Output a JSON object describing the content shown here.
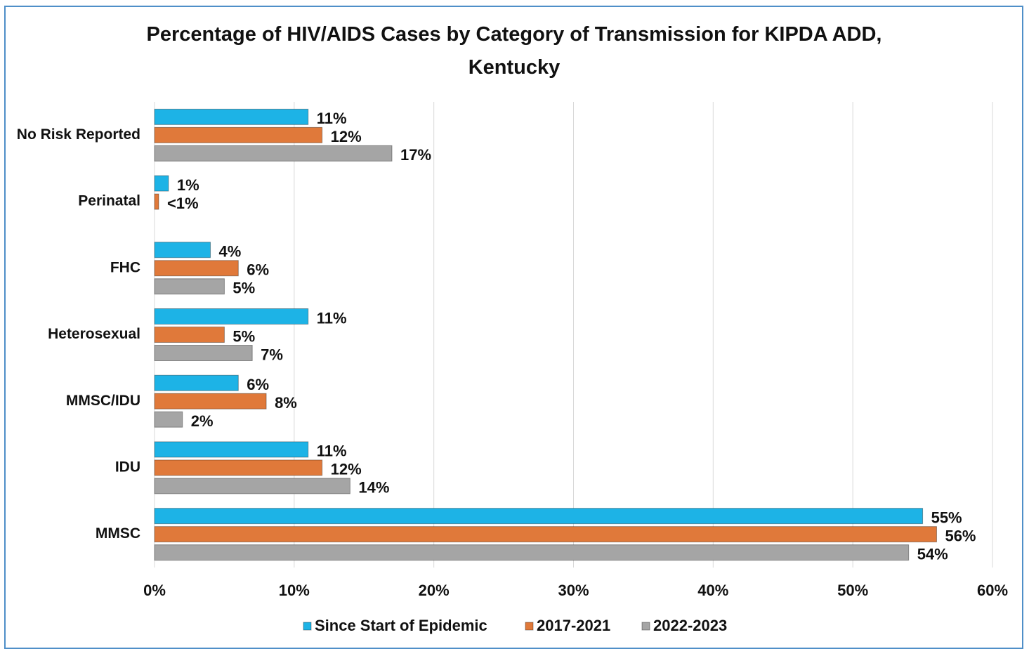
{
  "chart_data": {
    "type": "bar",
    "orientation": "horizontal",
    "title": "Percentage of HIV/AIDS Cases by Category of Transmission  for KIPDA ADD, Kentucky",
    "categories": [
      "No Risk Reported",
      "Perinatal",
      "FHC",
      "Heterosexual",
      "MMSC/IDU",
      "IDU",
      "MMSC"
    ],
    "series": [
      {
        "name": "Since Start of Epidemic",
        "color": "#1db3e6",
        "values": [
          11,
          1,
          4,
          11,
          6,
          11,
          55
        ],
        "value_labels": [
          "11%",
          "1%",
          "4%",
          "11%",
          "6%",
          "11%",
          "55%"
        ]
      },
      {
        "name": "2017-2021",
        "color": "#e0793a",
        "values": [
          12,
          0.3,
          6,
          5,
          8,
          12,
          56
        ],
        "value_labels": [
          "12%",
          "<1%",
          "6%",
          "5%",
          "8%",
          "12%",
          "56%"
        ]
      },
      {
        "name": "2022-2023",
        "color": "#a5a5a5",
        "values": [
          17,
          null,
          5,
          7,
          2,
          14,
          54
        ],
        "value_labels": [
          "17%",
          null,
          "5%",
          "7%",
          "2%",
          "14%",
          "54%"
        ]
      }
    ],
    "xlim": [
      0,
      60
    ],
    "xticks": [
      {
        "value": 0,
        "label": "0%"
      },
      {
        "value": 10,
        "label": "10%"
      },
      {
        "value": 20,
        "label": "20%"
      },
      {
        "value": 30,
        "label": "30%"
      },
      {
        "value": 40,
        "label": "40%"
      },
      {
        "value": 50,
        "label": "50%"
      },
      {
        "value": 60,
        "label": "60%"
      }
    ],
    "grid": true,
    "legend": "bottom"
  }
}
